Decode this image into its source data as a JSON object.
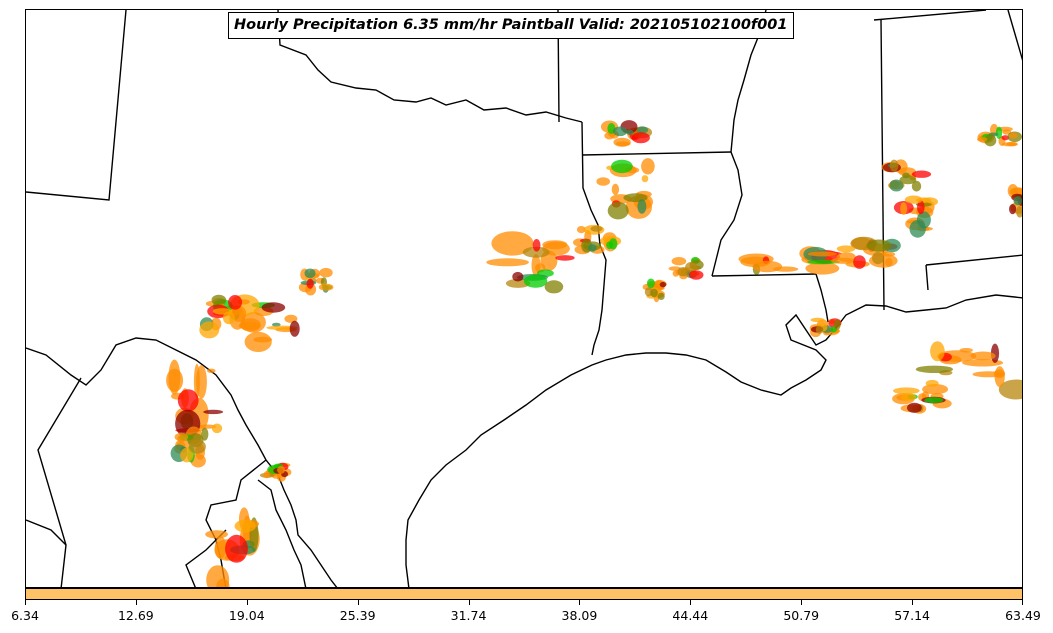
{
  "map": {
    "title": "Hourly Precipitation 6.35 mm/hr Paintball Valid: 202105102100f001",
    "colors": {
      "boundary": "#000000",
      "background": "#ffffff",
      "member_colors": [
        "#ff8c00",
        "#ff0000",
        "#8b0000",
        "#00cc00",
        "#2e8b57",
        "#808000",
        "#ffa500",
        "#b8860b"
      ]
    }
  },
  "colorbar": {
    "color": "#ffc266",
    "ticks": [
      "6.34",
      "12.69",
      "19.04",
      "25.39",
      "31.74",
      "38.09",
      "44.44",
      "50.79",
      "57.14",
      "63.49"
    ]
  }
}
